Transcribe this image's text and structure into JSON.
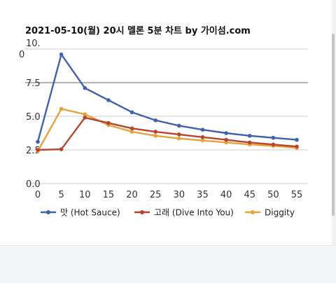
{
  "chart_data": {
    "type": "line",
    "title": "2021-05-10(월) 20시 멜론 5분 차트 by 가이섬.com",
    "x": [
      0,
      5,
      10,
      15,
      20,
      25,
      30,
      35,
      40,
      45,
      50,
      55
    ],
    "xticks": [
      "0",
      "5",
      "10",
      "15",
      "20",
      "25",
      "30",
      "35",
      "40",
      "45",
      "50",
      "55"
    ],
    "yticks": [
      "0.0",
      "2.5",
      "5.0",
      "7.5",
      "10.0"
    ],
    "ylim": [
      0,
      10
    ],
    "xlim": [
      0,
      55
    ],
    "grid": true,
    "legend_position": "bottom",
    "series": [
      {
        "name": "맛 (Hot Sauce)",
        "color": "#4161ad",
        "values": [
          3.1,
          9.6,
          7.1,
          6.2,
          5.3,
          4.7,
          4.3,
          4.0,
          3.75,
          3.55,
          3.4,
          3.25
        ]
      },
      {
        "name": "고래 (Dive Into You)",
        "color": "#b6452b",
        "values": [
          2.5,
          2.55,
          4.9,
          4.5,
          4.1,
          3.85,
          3.65,
          3.45,
          3.25,
          3.05,
          2.9,
          2.75
        ]
      },
      {
        "name": "Diggity",
        "color": "#e6a23c",
        "values": [
          2.4,
          5.55,
          5.15,
          4.35,
          3.85,
          3.55,
          3.35,
          3.2,
          3.05,
          2.9,
          2.8,
          2.65
        ]
      }
    ]
  }
}
